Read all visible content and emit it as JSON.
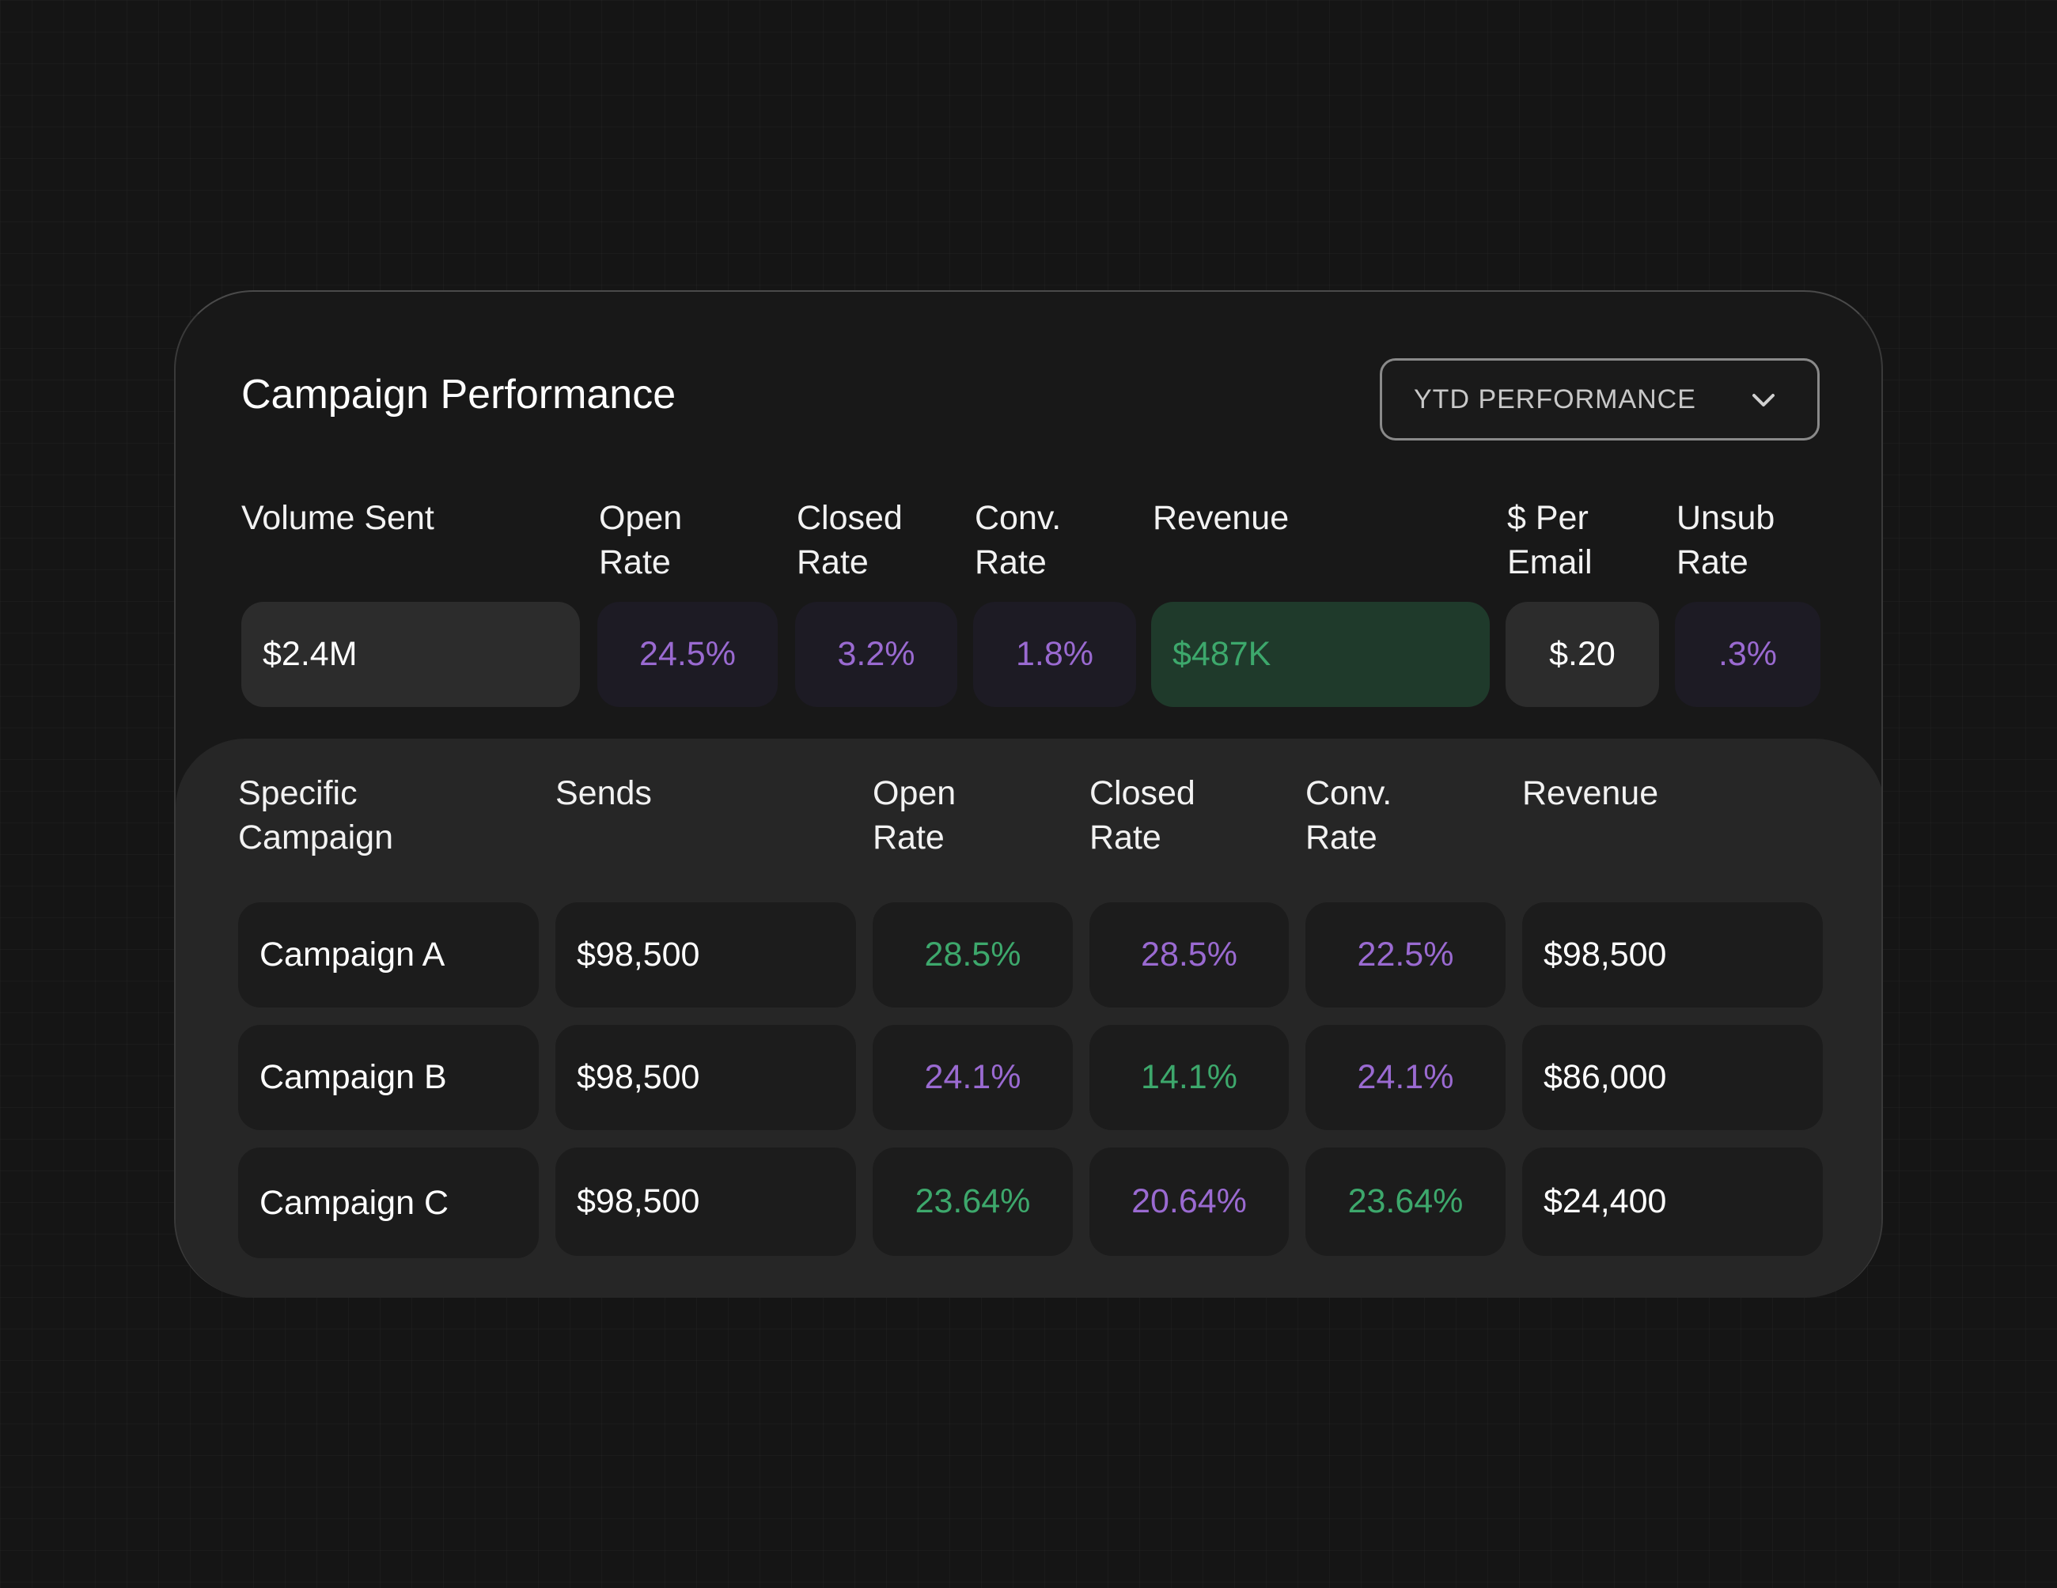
{
  "panel": {
    "title": "Campaign Performance",
    "dropdown": {
      "label": "YTD PERFORMANCE",
      "icon": "chevron-down-icon"
    }
  },
  "summary": {
    "headers": [
      "Volume Sent",
      "Open\nRate",
      "Closed\nRate",
      "Conv.\nRate",
      "Revenue",
      "$ Per\nEmail",
      "Unsub\nRate"
    ],
    "values": [
      "$2.4M",
      "24.5%",
      "3.2%",
      "1.8%",
      "$487K",
      "$.20",
      ".3%"
    ]
  },
  "campaigns": {
    "headers": [
      "Specific\nCampaign",
      "Sends",
      "Open\nRate",
      "Closed\nRate",
      "Conv.\nRate",
      "Revenue"
    ],
    "rows": [
      [
        "Campaign A",
        "$98,500",
        "28.5%",
        "28.5%",
        "22.5%",
        "$98,500"
      ],
      [
        "Campaign B",
        "$98,500",
        "24.1%",
        "14.1%",
        "24.1%",
        "$86,000"
      ],
      [
        "Campaign C",
        "$98,500",
        "23.64%",
        "20.64%",
        "23.64%",
        "$24,400"
      ]
    ]
  },
  "colors": {
    "background": "#151515",
    "card": "#181818",
    "lower_panel": "#262626",
    "purple_metric": "#9a6ad1",
    "green_metric": "#3da86c",
    "revenue_highlight": "#1f3a2b"
  }
}
